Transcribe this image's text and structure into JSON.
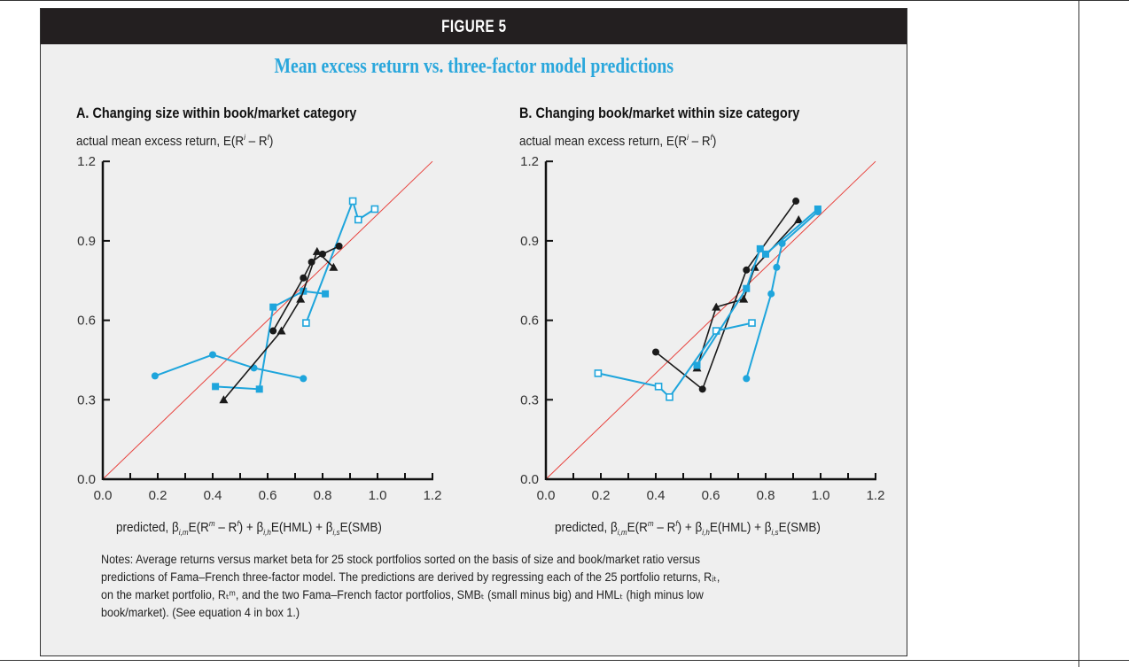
{
  "header": {
    "figure_label": "FIGURE 5",
    "title": "Mean excess return vs. three-factor model predictions"
  },
  "colors": {
    "header_bg": "#231f20",
    "title": "#2aa7dc",
    "cyan_series": "#1ea5dc",
    "black_series": "#1a1a1a",
    "diagonal": "#e8413c",
    "panel_bg": "#efefef"
  },
  "notes": "Notes: Average returns versus market beta for 25 stock portfolios sorted on the basis of size and book/market ratio versus predictions of Fama–French three-factor model. The predictions are derived by regressing each of the 25 portfolio returns, Rᵢₜ, on the market portfolio, Rₜᵐ, and the two Fama–French factor portfolios, SMBₜ (small minus big) and HMLₜ (high minus low book/market). (See equation 4 in box 1.)",
  "axis_text": {
    "ylabel_prefix": "actual mean excess return, E(R",
    "ylabel_sup1": "i",
    "ylabel_mid": " – R",
    "ylabel_sup2": "f",
    "ylabel_end": ")",
    "xlabel": "predicted, β_i,m E(R^m – R^f) + β_i,h E(HML) + β_i,s E(SMB)",
    "x_p1": "predicted, β",
    "x_s1": "i,m",
    "x_p2": "E(R",
    "x_sup1": "m",
    "x_p3": " – R",
    "x_sup2": "f",
    "x_p4": ") + β",
    "x_s2": "i,h",
    "x_p5": "E(HML) + β",
    "x_s3": "i,s",
    "x_p6": "E(SMB)"
  },
  "chart_data": [
    {
      "type": "line",
      "title": "A. Changing size within book/market category",
      "ylabel": "actual mean excess return, E(R^i – R^f)",
      "xlabel": "predicted, β_i,m E(R^m – R^f) + β_i,h E(HML) + β_i,s E(SMB)",
      "xlim": [
        0,
        1.2
      ],
      "ylim": [
        0,
        1.2
      ],
      "xticks": [
        "0.0",
        "0.2",
        "0.4",
        "0.6",
        "0.8",
        "1.0",
        "1.2"
      ],
      "yticks": [
        "0.0",
        "0.3",
        "0.6",
        "0.9",
        "1.2"
      ],
      "grid": false,
      "reference_line": "45-degree line",
      "series": [
        {
          "marker": "circle",
          "color": "cyan",
          "points": [
            [
              0.19,
              0.39
            ],
            [
              0.4,
              0.47
            ],
            [
              0.55,
              0.42
            ],
            [
              0.73,
              0.38
            ]
          ]
        },
        {
          "marker": "square",
          "color": "cyan",
          "points": [
            [
              0.41,
              0.35
            ],
            [
              0.57,
              0.34
            ],
            [
              0.62,
              0.65
            ],
            [
              0.73,
              0.71
            ],
            [
              0.81,
              0.7
            ]
          ]
        },
        {
          "marker": "open-square",
          "color": "cyan",
          "points": [
            [
              0.74,
              0.59
            ],
            [
              0.91,
              1.05
            ],
            [
              0.93,
              0.98
            ],
            [
              0.99,
              1.02
            ]
          ]
        },
        {
          "marker": "circle",
          "color": "black",
          "points": [
            [
              0.62,
              0.56
            ],
            [
              0.73,
              0.76
            ],
            [
              0.76,
              0.82
            ],
            [
              0.8,
              0.85
            ],
            [
              0.86,
              0.88
            ]
          ]
        },
        {
          "marker": "triangle",
          "color": "black",
          "points": [
            [
              0.44,
              0.3
            ],
            [
              0.65,
              0.56
            ],
            [
              0.72,
              0.68
            ],
            [
              0.78,
              0.86
            ],
            [
              0.84,
              0.8
            ]
          ]
        }
      ]
    },
    {
      "type": "line",
      "title": "B. Changing book/market within size category",
      "ylabel": "actual mean excess return, E(R^i – R^f)",
      "xlabel": "predicted, β_i,m E(R^m – R^f) + β_i,h E(HML) + β_i,s E(SMB)",
      "xlim": [
        0,
        1.2
      ],
      "ylim": [
        0,
        1.2
      ],
      "xticks": [
        "0.0",
        "0.2",
        "0.4",
        "0.6",
        "0.8",
        "1.0",
        "1.2"
      ],
      "yticks": [
        "0.0",
        "0.3",
        "0.6",
        "0.9",
        "1.2"
      ],
      "grid": false,
      "reference_line": "45-degree line",
      "series": [
        {
          "marker": "circle",
          "color": "black",
          "points": [
            [
              0.4,
              0.48
            ],
            [
              0.57,
              0.34
            ],
            [
              0.73,
              0.79
            ],
            [
              0.91,
              1.05
            ]
          ]
        },
        {
          "marker": "triangle",
          "color": "black",
          "points": [
            [
              0.55,
              0.42
            ],
            [
              0.62,
              0.65
            ],
            [
              0.72,
              0.68
            ],
            [
              0.76,
              0.8
            ],
            [
              0.92,
              0.98
            ]
          ]
        },
        {
          "marker": "open-square",
          "color": "cyan",
          "points": [
            [
              0.19,
              0.4
            ],
            [
              0.41,
              0.35
            ],
            [
              0.45,
              0.31
            ],
            [
              0.62,
              0.56
            ],
            [
              0.75,
              0.59
            ]
          ]
        },
        {
          "marker": "square",
          "color": "cyan",
          "points": [
            [
              0.55,
              0.43
            ],
            [
              0.73,
              0.72
            ],
            [
              0.78,
              0.87
            ],
            [
              0.8,
              0.85
            ],
            [
              0.99,
              1.02
            ]
          ]
        },
        {
          "marker": "circle",
          "color": "cyan",
          "points": [
            [
              0.73,
              0.38
            ],
            [
              0.82,
              0.7
            ],
            [
              0.84,
              0.8
            ],
            [
              0.86,
              0.89
            ],
            [
              0.99,
              1.01
            ]
          ]
        }
      ]
    }
  ]
}
